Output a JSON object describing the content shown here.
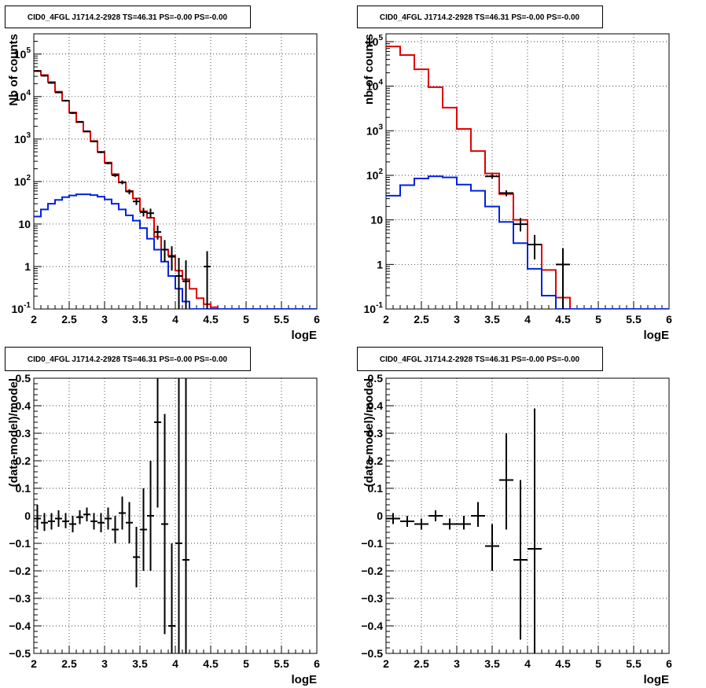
{
  "colors": {
    "data": "#000000",
    "total_model": "#e00000",
    "component": "#0022dd",
    "grid": "#000000"
  },
  "chart_data": [
    {
      "type": "line",
      "title": "CID0_4FGL J1714.2-2928 TS=46.31 PS=-0.00 PS=-0.00",
      "xlabel": "logE",
      "ylabel": "Nb of counts",
      "xlim": [
        2,
        6
      ],
      "ylim": [
        0.1,
        300000
      ],
      "yscale": "log",
      "grid": true,
      "x_ticks": [
        "2",
        "2.5",
        "3",
        "3.5",
        "4",
        "4.5",
        "5",
        "5.5",
        "6"
      ],
      "y_ticks": [
        "10^-1",
        "1",
        "10",
        "10^2",
        "10^3",
        "10^4",
        "10^5"
      ],
      "bin_edges": [
        2.0,
        2.1,
        2.2,
        2.3,
        2.4,
        2.5,
        2.6,
        2.7,
        2.8,
        2.9,
        3.0,
        3.1,
        3.2,
        3.3,
        3.4,
        3.5,
        3.6,
        3.7,
        3.8,
        3.9,
        4.0,
        4.1,
        4.2,
        4.3,
        4.4,
        4.5,
        4.6,
        4.7,
        4.8,
        4.9,
        5.0,
        5.1,
        5.2,
        5.3,
        5.4,
        5.5,
        5.6,
        5.7,
        5.8,
        5.9,
        6.0
      ],
      "series": [
        {
          "role": "total_model",
          "values": [
            40000,
            32000,
            22000,
            13000,
            8000,
            4200,
            2500,
            1500,
            900,
            500,
            280,
            150,
            95,
            60,
            40,
            20,
            14,
            5,
            2.5,
            1.8,
            0.8,
            0.5,
            0.3,
            0.18,
            0.13,
            0.11,
            0.1,
            0.1,
            0.1,
            0.1,
            0.1,
            0.1,
            0.1,
            0.1,
            0.1,
            0.1,
            0.1,
            0.1,
            0.1,
            0.1
          ]
        },
        {
          "role": "component",
          "values": [
            15,
            22,
            30,
            37,
            43,
            47,
            50,
            50,
            48,
            44,
            38,
            30,
            22,
            16,
            12,
            8,
            4.5,
            2.5,
            1.3,
            0.6,
            0.3,
            0.15,
            0.1,
            0.1,
            0.1,
            0.1,
            0.1,
            0.1,
            0.1,
            0.1,
            0.1,
            0.1,
            0.1,
            0.1,
            0.1,
            0.1,
            0.1,
            0.1,
            0.1,
            0.1
          ]
        },
        {
          "role": "data",
          "points": [
            {
              "x": 2.05,
              "y": 40000,
              "lo": 38000,
              "hi": 42000
            },
            {
              "x": 2.15,
              "y": 31000,
              "lo": 29500,
              "hi": 32500
            },
            {
              "x": 2.25,
              "y": 21000,
              "lo": 20000,
              "hi": 22000
            },
            {
              "x": 2.35,
              "y": 12500,
              "lo": 12000,
              "hi": 13000
            },
            {
              "x": 2.45,
              "y": 8000,
              "lo": 7600,
              "hi": 8400
            },
            {
              "x": 2.55,
              "y": 4100,
              "lo": 3900,
              "hi": 4300
            },
            {
              "x": 2.65,
              "y": 2550,
              "lo": 2450,
              "hi": 2650
            },
            {
              "x": 2.75,
              "y": 1520,
              "lo": 1450,
              "hi": 1600
            },
            {
              "x": 2.85,
              "y": 880,
              "lo": 840,
              "hi": 920
            },
            {
              "x": 2.95,
              "y": 490,
              "lo": 465,
              "hi": 515
            },
            {
              "x": 3.05,
              "y": 270,
              "lo": 255,
              "hi": 285
            },
            {
              "x": 3.15,
              "y": 140,
              "lo": 128,
              "hi": 152
            },
            {
              "x": 3.25,
              "y": 96,
              "lo": 86,
              "hi": 106
            },
            {
              "x": 3.35,
              "y": 58,
              "lo": 50,
              "hi": 66
            },
            {
              "x": 3.45,
              "y": 34,
              "lo": 28,
              "hi": 40
            },
            {
              "x": 3.55,
              "y": 19,
              "lo": 15,
              "hi": 24
            },
            {
              "x": 3.65,
              "y": 18,
              "lo": 14,
              "hi": 23
            },
            {
              "x": 3.75,
              "y": 6.5,
              "lo": 4.3,
              "hi": 9.2
            },
            {
              "x": 3.85,
              "y": 2.5,
              "lo": 1.3,
              "hi": 4.2
            },
            {
              "x": 3.95,
              "y": 1.7,
              "lo": 0.8,
              "hi": 3.0
            },
            {
              "x": 4.05,
              "y": 0.6,
              "lo": 0.1,
              "hi": 1.6
            },
            {
              "x": 4.15,
              "y": 0.45,
              "lo": 0.1,
              "hi": 1.4
            },
            {
              "x": 4.45,
              "y": 1.0,
              "lo": 0.1,
              "hi": 2.3
            }
          ]
        }
      ]
    },
    {
      "type": "line",
      "title": "CID0_4FGL J1714.2-2928 TS=46.31 PS=-0.00 PS=-0.00",
      "xlabel": "logE",
      "ylabel": "nb of counts",
      "xlim": [
        2,
        6
      ],
      "ylim": [
        0.1,
        150000
      ],
      "yscale": "log",
      "grid": true,
      "x_ticks": [
        "2",
        "2.5",
        "3",
        "3.5",
        "4",
        "4.5",
        "5",
        "5.5",
        "6"
      ],
      "y_ticks": [
        "10^-1",
        "1",
        "10",
        "10^2",
        "10^3",
        "10^4",
        "10^5"
      ],
      "bin_edges": [
        2.0,
        2.2,
        2.4,
        2.6,
        2.8,
        3.0,
        3.2,
        3.4,
        3.6,
        3.8,
        4.0,
        4.2,
        4.4,
        4.6,
        4.8,
        5.0,
        5.2,
        5.4,
        5.6,
        5.8,
        6.0
      ],
      "series": [
        {
          "role": "total_model",
          "values": [
            78000,
            50000,
            24000,
            9500,
            3300,
            1100,
            350,
            110,
            38,
            10,
            2.8,
            0.75,
            0.18,
            0.1,
            0.1,
            0.1,
            0.1,
            0.1,
            0.1,
            0.1
          ]
        },
        {
          "role": "component",
          "values": [
            35,
            60,
            85,
            95,
            90,
            62,
            45,
            20,
            9,
            3,
            0.8,
            0.2,
            0.1,
            0.1,
            0.1,
            0.1,
            0.1,
            0.1,
            0.1,
            0.1
          ]
        },
        {
          "role": "data",
          "points": [
            {
              "x": 3.5,
              "y": 95,
              "lo": 85,
              "hi": 105
            },
            {
              "x": 3.7,
              "y": 40,
              "lo": 34,
              "hi": 46
            },
            {
              "x": 3.9,
              "y": 8,
              "lo": 5.5,
              "hi": 11
            },
            {
              "x": 4.1,
              "y": 2.8,
              "lo": 1.3,
              "hi": 4.6
            },
            {
              "x": 4.5,
              "y": 1.0,
              "lo": 0.1,
              "hi": 2.3
            }
          ]
        }
      ]
    },
    {
      "type": "scatter",
      "title": "CID0_4FGL J1714.2-2928 TS=46.31 PS=-0.00 PS=-0.00",
      "xlabel": "logE",
      "ylabel": "(data-model)/model",
      "xlim": [
        2,
        6
      ],
      "ylim": [
        -0.5,
        0.5
      ],
      "grid": true,
      "x_ticks": [
        "2",
        "2.5",
        "3",
        "3.5",
        "4",
        "4.5",
        "5",
        "5.5",
        "6"
      ],
      "y_ticks": [
        "−0.5",
        "−0.4",
        "−0.3",
        "−0.2",
        "−0.1",
        "0",
        "0.1",
        "0.2",
        "0.3",
        "0.4",
        "0.5"
      ],
      "series": [
        {
          "role": "data",
          "points": [
            {
              "x": 2.05,
              "y": -0.01,
              "lo": -0.05,
              "hi": 0.04
            },
            {
              "x": 2.15,
              "y": -0.025,
              "lo": -0.055,
              "hi": 0.01
            },
            {
              "x": 2.25,
              "y": -0.02,
              "lo": -0.05,
              "hi": 0.01
            },
            {
              "x": 2.35,
              "y": -0.01,
              "lo": -0.04,
              "hi": 0.02
            },
            {
              "x": 2.45,
              "y": -0.02,
              "lo": -0.045,
              "hi": 0.01
            },
            {
              "x": 2.55,
              "y": -0.03,
              "lo": -0.06,
              "hi": 0.0
            },
            {
              "x": 2.65,
              "y": -0.005,
              "lo": -0.03,
              "hi": 0.02
            },
            {
              "x": 2.75,
              "y": 0.005,
              "lo": -0.02,
              "hi": 0.03
            },
            {
              "x": 2.85,
              "y": -0.02,
              "lo": -0.05,
              "hi": 0.01
            },
            {
              "x": 2.95,
              "y": -0.025,
              "lo": -0.06,
              "hi": 0.01
            },
            {
              "x": 3.05,
              "y": -0.01,
              "lo": -0.05,
              "hi": 0.03
            },
            {
              "x": 3.15,
              "y": -0.05,
              "lo": -0.1,
              "hi": 0.0
            },
            {
              "x": 3.25,
              "y": 0.01,
              "lo": -0.05,
              "hi": 0.07
            },
            {
              "x": 3.35,
              "y": -0.025,
              "lo": -0.1,
              "hi": 0.05
            },
            {
              "x": 3.45,
              "y": -0.15,
              "lo": -0.26,
              "hi": -0.04
            },
            {
              "x": 3.55,
              "y": -0.05,
              "lo": -0.2,
              "hi": 0.1
            },
            {
              "x": 3.65,
              "y": 0.0,
              "lo": -0.2,
              "hi": 0.2
            },
            {
              "x": 3.75,
              "y": 0.34,
              "lo": 0.03,
              "hi": 0.5
            },
            {
              "x": 3.85,
              "y": -0.03,
              "lo": -0.43,
              "hi": 0.37
            },
            {
              "x": 3.95,
              "y": -0.4,
              "lo": -0.5,
              "hi": -0.1
            },
            {
              "x": 4.05,
              "y": -0.1,
              "lo": -0.5,
              "hi": 0.5
            },
            {
              "x": 4.15,
              "y": -0.16,
              "lo": -0.5,
              "hi": 0.5
            }
          ]
        }
      ]
    },
    {
      "type": "scatter",
      "title": "CID0_4FGL J1714.2-2928 TS=46.31 PS=-0.00 PS=-0.00",
      "xlabel": "logE",
      "ylabel": "(data-model)/model",
      "xlim": [
        2,
        6
      ],
      "ylim": [
        -0.5,
        0.5
      ],
      "grid": true,
      "x_ticks": [
        "2",
        "2.5",
        "3",
        "3.5",
        "4",
        "4.5",
        "5",
        "5.5",
        "6"
      ],
      "y_ticks": [
        "−0.5",
        "−0.4",
        "−0.3",
        "−0.2",
        "−0.1",
        "0",
        "0.1",
        "0.2",
        "0.3",
        "0.4",
        "0.5"
      ],
      "series": [
        {
          "role": "data",
          "points": [
            {
              "x": 2.1,
              "y": -0.01,
              "lo": -0.03,
              "hi": 0.01
            },
            {
              "x": 2.3,
              "y": -0.02,
              "lo": -0.04,
              "hi": 0.0
            },
            {
              "x": 2.5,
              "y": -0.03,
              "lo": -0.05,
              "hi": -0.01
            },
            {
              "x": 2.7,
              "y": 0.0,
              "lo": -0.02,
              "hi": 0.02
            },
            {
              "x": 2.9,
              "y": -0.03,
              "lo": -0.05,
              "hi": -0.01
            },
            {
              "x": 3.1,
              "y": -0.03,
              "lo": -0.05,
              "hi": 0.0
            },
            {
              "x": 3.3,
              "y": 0.0,
              "lo": -0.04,
              "hi": 0.05
            },
            {
              "x": 3.5,
              "y": -0.11,
              "lo": -0.2,
              "hi": -0.03
            },
            {
              "x": 3.7,
              "y": 0.13,
              "lo": -0.05,
              "hi": 0.3
            },
            {
              "x": 3.9,
              "y": -0.16,
              "lo": -0.45,
              "hi": 0.13
            },
            {
              "x": 4.1,
              "y": -0.12,
              "lo": -0.5,
              "hi": 0.39
            }
          ]
        }
      ]
    }
  ]
}
